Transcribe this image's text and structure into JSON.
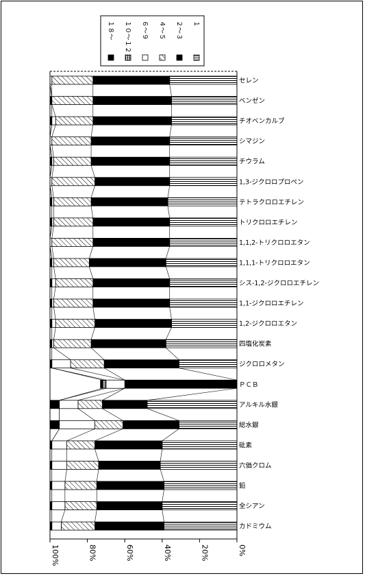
{
  "chart_data": {
    "type": "bar",
    "orientation": "horizontal-stacked-100",
    "title": "",
    "xlabel": "",
    "ylabel": "",
    "xlim": [
      0,
      100
    ],
    "x_axis_reversed": true,
    "x_ticks": [
      "100%",
      "80%",
      "60%",
      "40%",
      "20%",
      "0%"
    ],
    "categories": [
      "セレン",
      "ベンゼン",
      "チオベンカルブ",
      "シマジン",
      "チウラム",
      "1,3-ジクロロプロペン",
      "テトラクロロエチレン",
      "トリクロロエチレン",
      "1,1,2-トリクロロエタン",
      "1,1,1-トリクロロエタン",
      "シス-1,2-ジクロロエチレン",
      "1,1-ジクロロエチレン",
      "1,2-ジクロロエタン",
      "四塩化炭素",
      "ジクロロメタン",
      "ＰＣＢ",
      "アルキル水銀",
      "総水銀",
      "砒素",
      "六価クロム",
      "鉛",
      "全シアン",
      "カドミウム"
    ],
    "legend": {
      "placement": "top",
      "entries": [
        "18～",
        "10～12",
        "6～9",
        "4～5",
        "2～3",
        "1"
      ],
      "vertical_text": [
        "１８～",
        "１０～１２",
        "６～９",
        "４～５",
        "２～３",
        "１"
      ]
    },
    "series": [
      {
        "name": "1",
        "pattern": "hlines",
        "values": [
          36,
          35,
          35,
          36,
          36,
          36,
          37,
          36,
          36,
          38,
          36,
          36,
          35,
          38,
          31,
          0,
          48,
          31,
          40,
          41,
          39,
          40,
          39
        ]
      },
      {
        "name": "2～3",
        "pattern": "solid",
        "values": [
          41,
          42,
          42,
          42,
          42,
          40,
          41,
          41,
          41,
          41,
          41,
          41,
          41,
          40,
          40,
          60,
          24,
          30,
          36,
          33,
          36,
          35,
          37
        ]
      },
      {
        "name": "4～5",
        "pattern": "hatch",
        "values": [
          22,
          22,
          20,
          21,
          20,
          23,
          20,
          21,
          22,
          19,
          20,
          21,
          21,
          20,
          18,
          0,
          13,
          15,
          15,
          17,
          17,
          17,
          18
        ]
      },
      {
        "name": "6～9",
        "pattern": "blank",
        "values": [
          1,
          0,
          2,
          1,
          1,
          1,
          1,
          1,
          1,
          1,
          2,
          1,
          2,
          1,
          10,
          10,
          10,
          19,
          8,
          8,
          7,
          7,
          5
        ]
      },
      {
        "name": "10～12",
        "pattern": "grid",
        "values": [
          0,
          0,
          0,
          0,
          0,
          0,
          0,
          0,
          0,
          0,
          0,
          0,
          0,
          0,
          0,
          2,
          0,
          0,
          0,
          0,
          0,
          0,
          0
        ]
      },
      {
        "name": "18～",
        "pattern": "solid",
        "values": [
          0,
          1,
          1,
          0,
          1,
          0,
          1,
          1,
          0,
          1,
          1,
          1,
          1,
          1,
          1,
          1,
          5,
          5,
          1,
          1,
          1,
          1,
          1
        ]
      }
    ],
    "grid": false
  }
}
